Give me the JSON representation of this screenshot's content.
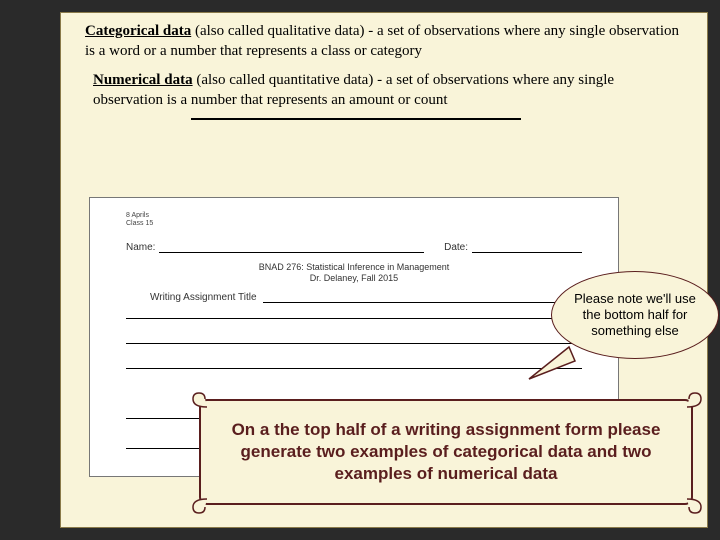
{
  "definitions": {
    "categorical": {
      "term": "Categorical data",
      "rest": " (also called qualitative data)  - a set of observations where any single observation is a word or a number that represents a class or category"
    },
    "numerical": {
      "term": "Numerical data",
      "rest": " (also called quantitative data) - a set of observations where any single observation is a number that represents an amount or count"
    }
  },
  "form": {
    "tiny_line1": "8 Aprils",
    "tiny_line2": "Class 15",
    "name_label": "Name:",
    "date_label": "Date:",
    "course_line1": "BNAD 276: Statistical Inference in Management",
    "course_line2": "Dr. Delaney, Fall 2015",
    "title_label": "Writing Assignment Title",
    "line_positions": [
      120,
      145,
      170,
      220,
      250
    ]
  },
  "callout": {
    "text": "Please note we'll use the bottom half for something else"
  },
  "instruction": {
    "text": "On a the top half of a writing assignment form please generate two examples of categorical data and two examples of numerical data"
  },
  "colors": {
    "slide_bg": "#f9f4d9",
    "dark_red": "#5a1e1e",
    "page_bg": "#2a2a2a"
  }
}
